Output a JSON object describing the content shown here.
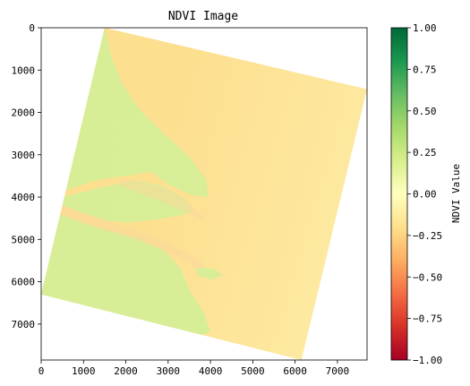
{
  "chart_data": {
    "type": "heatmap",
    "title": "NDVI Image",
    "xlabel": "",
    "ylabel": "",
    "xlim": [
      0,
      7700
    ],
    "ylim": [
      7850,
      0
    ],
    "x_ticks": [
      0,
      1000,
      2000,
      3000,
      4000,
      5000,
      6000,
      7000
    ],
    "y_ticks": [
      0,
      1000,
      2000,
      3000,
      4000,
      5000,
      6000,
      7000
    ],
    "colorbar": {
      "label": "NDVI Value",
      "range": [
        -1.0,
        1.0
      ],
      "ticks": [
        "1.00",
        "0.75",
        "0.50",
        "0.25",
        "0.00",
        "−0.25",
        "−0.50",
        "−0.75",
        "−1.00"
      ],
      "tick_values": [
        1.0,
        0.75,
        0.5,
        0.25,
        0.0,
        -0.25,
        -0.5,
        -0.75,
        -1.0
      ],
      "colormap": "RdYlGn",
      "colors": [
        "#a50026",
        "#d73027",
        "#f46d43",
        "#fdae61",
        "#fee08b",
        "#ffffbf",
        "#d9ef8b",
        "#a6d96a",
        "#66bd63",
        "#1a9850",
        "#006837"
      ]
    },
    "image_footprint": {
      "corners": [
        [
          1500,
          0
        ],
        [
          7700,
          1450
        ],
        [
          6150,
          7850
        ],
        [
          0,
          6300
        ]
      ],
      "land_ndvi_approx": 0.2,
      "water_ndvi_approx": -0.15
    },
    "colors": {
      "water": "#fde9a0",
      "water_near": "#fddf90",
      "land": "#d8ee97",
      "land_dark": "#c6e582",
      "nodata": "#ffffff"
    }
  }
}
